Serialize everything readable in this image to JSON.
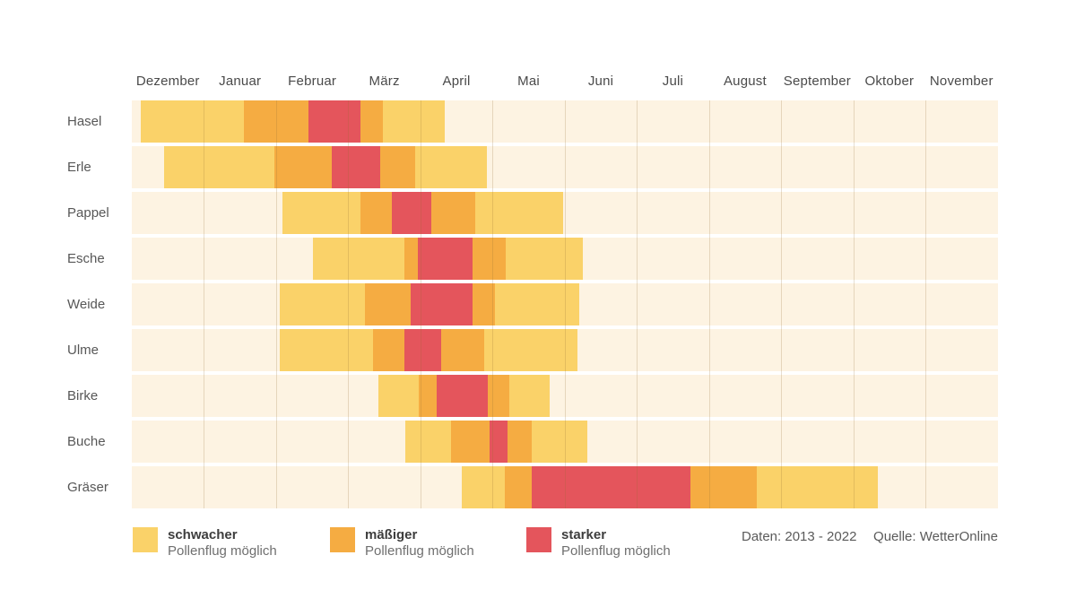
{
  "chart_data": {
    "type": "heatmap",
    "description": "Pollenflug-Kalender: Blühzeiten je Pflanze über 12 Monate, Intensität farbcodiert",
    "x_axis": {
      "unit": "month",
      "range": [
        0,
        12
      ],
      "months": [
        "Dezember",
        "Januar",
        "Februar",
        "März",
        "April",
        "Mai",
        "Juni",
        "Juli",
        "August",
        "September",
        "Oktober",
        "November"
      ]
    },
    "levels": [
      {
        "key": "schwacher",
        "label": "schwacher",
        "sublabel": "Pollenflug möglich",
        "color": "#FAD269"
      },
      {
        "key": "maessiger",
        "label": "mäßiger",
        "sublabel": "Pollenflug möglich",
        "color": "#F5AC42"
      },
      {
        "key": "starker",
        "label": "starker",
        "sublabel": "Pollenflug möglich",
        "color": "#E4555C"
      }
    ],
    "track_color": "#FDF3E2",
    "rows": [
      {
        "name": "Hasel",
        "segments": [
          [
            0.12,
            1.55,
            "schwacher"
          ],
          [
            1.55,
            2.45,
            "maessiger"
          ],
          [
            2.45,
            3.17,
            "starker"
          ],
          [
            3.17,
            3.48,
            "maessiger"
          ],
          [
            3.48,
            4.34,
            "schwacher"
          ]
        ]
      },
      {
        "name": "Erle",
        "segments": [
          [
            0.45,
            1.98,
            "schwacher"
          ],
          [
            1.98,
            2.77,
            "maessiger"
          ],
          [
            2.77,
            3.44,
            "starker"
          ],
          [
            3.44,
            3.93,
            "maessiger"
          ],
          [
            3.93,
            4.92,
            "schwacher"
          ]
        ]
      },
      {
        "name": "Pappel",
        "segments": [
          [
            2.09,
            3.17,
            "schwacher"
          ],
          [
            3.17,
            3.6,
            "maessiger"
          ],
          [
            3.6,
            4.15,
            "starker"
          ],
          [
            4.15,
            4.76,
            "maessiger"
          ],
          [
            4.76,
            5.98,
            "schwacher"
          ]
        ]
      },
      {
        "name": "Esche",
        "segments": [
          [
            2.51,
            3.78,
            "schwacher"
          ],
          [
            3.78,
            3.96,
            "maessiger"
          ],
          [
            3.96,
            4.72,
            "starker"
          ],
          [
            4.72,
            5.18,
            "maessiger"
          ],
          [
            5.18,
            6.25,
            "schwacher"
          ]
        ]
      },
      {
        "name": "Weide",
        "segments": [
          [
            2.05,
            3.23,
            "schwacher"
          ],
          [
            3.23,
            3.86,
            "maessiger"
          ],
          [
            3.86,
            4.72,
            "starker"
          ],
          [
            4.72,
            5.03,
            "maessiger"
          ],
          [
            5.03,
            6.2,
            "schwacher"
          ]
        ]
      },
      {
        "name": "Ulme",
        "segments": [
          [
            2.05,
            3.34,
            "schwacher"
          ],
          [
            3.34,
            3.78,
            "maessiger"
          ],
          [
            3.78,
            4.29,
            "starker"
          ],
          [
            4.29,
            4.88,
            "maessiger"
          ],
          [
            4.88,
            6.18,
            "schwacher"
          ]
        ]
      },
      {
        "name": "Birke",
        "segments": [
          [
            3.42,
            3.98,
            "schwacher"
          ],
          [
            3.98,
            4.22,
            "maessiger"
          ],
          [
            4.22,
            4.93,
            "starker"
          ],
          [
            4.93,
            5.23,
            "maessiger"
          ],
          [
            5.23,
            5.79,
            "schwacher"
          ]
        ]
      },
      {
        "name": "Buche",
        "segments": [
          [
            3.79,
            4.42,
            "schwacher"
          ],
          [
            4.42,
            4.96,
            "maessiger"
          ],
          [
            4.96,
            5.21,
            "starker"
          ],
          [
            5.21,
            5.54,
            "maessiger"
          ],
          [
            5.54,
            6.31,
            "schwacher"
          ]
        ]
      },
      {
        "name": "Gräser",
        "segments": [
          [
            4.57,
            5.17,
            "schwacher"
          ],
          [
            5.17,
            5.54,
            "maessiger"
          ],
          [
            5.54,
            7.74,
            "starker"
          ],
          [
            7.74,
            8.66,
            "maessiger"
          ],
          [
            8.66,
            10.34,
            "schwacher"
          ]
        ]
      }
    ]
  },
  "footer": {
    "daten": "Daten: 2013 - 2022",
    "quelle": "Quelle: WetterOnline"
  }
}
